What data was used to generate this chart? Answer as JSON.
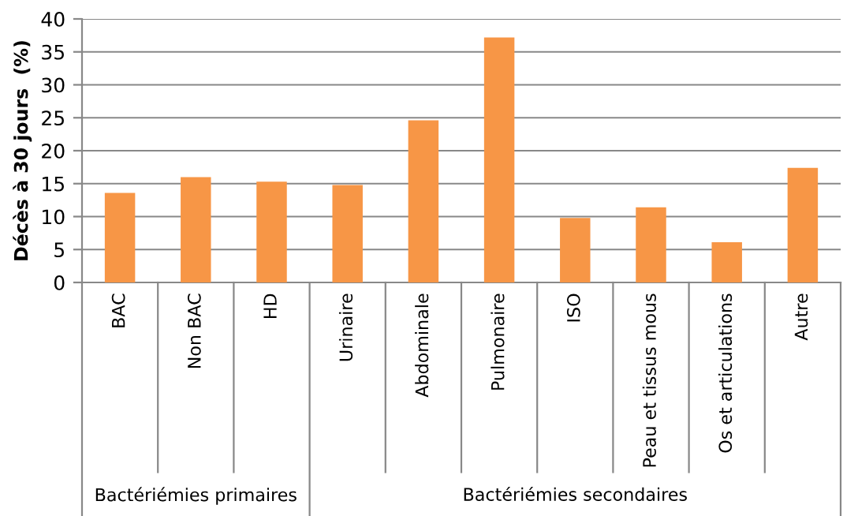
{
  "chart_data": {
    "type": "bar",
    "ylabel": "Décès à 30 jours  (%)",
    "categories": [
      "BAC",
      "Non BAC",
      "HD",
      "Urinaire",
      "Abdominale",
      "Pulmonaire",
      "ISO",
      "Peau et tissus mous",
      "Os et articulations",
      "Autre"
    ],
    "values": [
      13.6,
      16.0,
      15.3,
      14.8,
      24.6,
      37.2,
      9.8,
      11.4,
      6.1,
      17.4
    ],
    "color": "#f79646",
    "ylim": [
      0,
      40
    ],
    "yticks": [
      0,
      5,
      10,
      15,
      20,
      25,
      30,
      35,
      40
    ],
    "grid": "y",
    "annotations": [
      "Bactériémies primaires",
      "Bactériémies secondaires"
    ]
  }
}
